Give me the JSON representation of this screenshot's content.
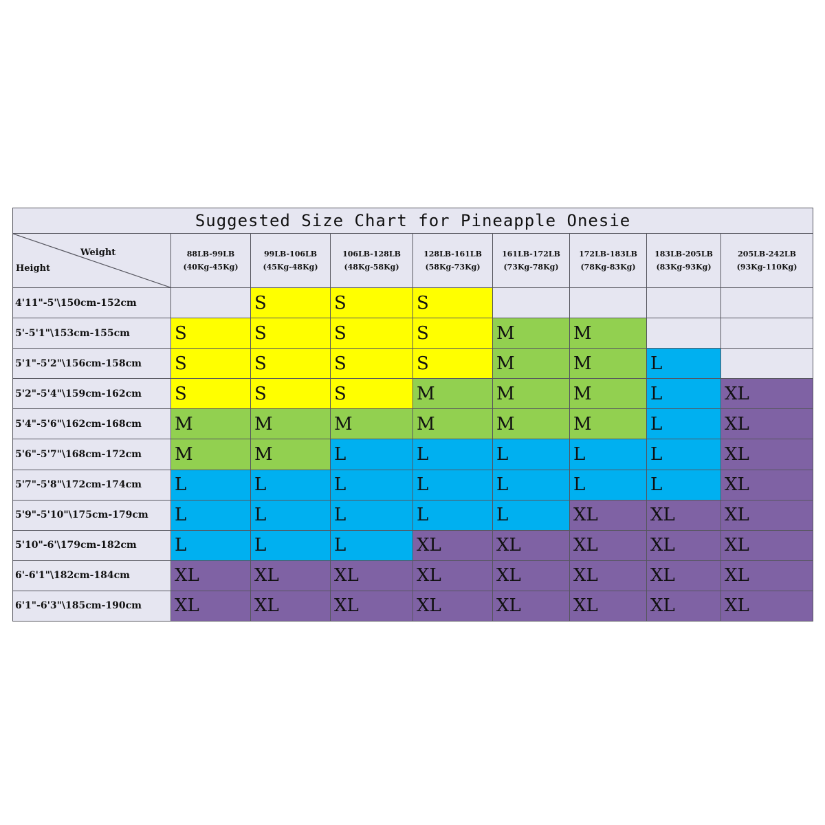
{
  "title": "Suggested Size Chart for Pineapple Onesie",
  "corner": {
    "weight_label": "Weight",
    "height_label": "Height"
  },
  "weight_columns": [
    {
      "lb": "88LB-99LB",
      "kg": "(40Kg-45Kg)"
    },
    {
      "lb": "99LB-106LB",
      "kg": "(45Kg-48Kg)"
    },
    {
      "lb": "106LB-128LB",
      "kg": "(48Kg-58Kg)"
    },
    {
      "lb": "128LB-161LB",
      "kg": "(58Kg-73Kg)"
    },
    {
      "lb": "161LB-172LB",
      "kg": "(73Kg-78Kg)"
    },
    {
      "lb": "172LB-183LB",
      "kg": "(78Kg-83Kg)"
    },
    {
      "lb": "183LB-205LB",
      "kg": "(83Kg-93Kg)"
    },
    {
      "lb": "205LB-242LB",
      "kg": "(93Kg-110Kg)"
    }
  ],
  "rows": [
    {
      "height": "4'11\"-5'\\150cm-152cm",
      "sizes": [
        "",
        "S",
        "S",
        "S",
        "",
        "",
        "",
        ""
      ]
    },
    {
      "height": "5'-5'1\"\\153cm-155cm",
      "sizes": [
        "S",
        "S",
        "S",
        "S",
        "M",
        "M",
        "",
        ""
      ]
    },
    {
      "height": "5'1\"-5'2\"\\156cm-158cm",
      "sizes": [
        "S",
        "S",
        "S",
        "S",
        "M",
        "M",
        "L",
        ""
      ]
    },
    {
      "height": "5'2\"-5'4\"\\159cm-162cm",
      "sizes": [
        "S",
        "S",
        "S",
        "M",
        "M",
        "M",
        "L",
        "XL"
      ]
    },
    {
      "height": "5'4\"-5'6\"\\162cm-168cm",
      "sizes": [
        "M",
        "M",
        "M",
        "M",
        "M",
        "M",
        "L",
        "XL"
      ]
    },
    {
      "height": "5'6\"-5'7\"\\168cm-172cm",
      "sizes": [
        "M",
        "M",
        "L",
        "L",
        "L",
        "L",
        "L",
        "XL"
      ]
    },
    {
      "height": "5'7\"-5'8\"\\172cm-174cm",
      "sizes": [
        "L",
        "L",
        "L",
        "L",
        "L",
        "L",
        "L",
        "XL"
      ]
    },
    {
      "height": "5'9\"-5'10\"\\175cm-179cm",
      "sizes": [
        "L",
        "L",
        "L",
        "L",
        "L",
        "XL",
        "XL",
        "XL"
      ]
    },
    {
      "height": "5'10\"-6'\\179cm-182cm",
      "sizes": [
        "L",
        "L",
        "L",
        "XL",
        "XL",
        "XL",
        "XL",
        "XL"
      ]
    },
    {
      "height": "6'-6'1\"\\182cm-184cm",
      "sizes": [
        "XL",
        "XL",
        "XL",
        "XL",
        "XL",
        "XL",
        "XL",
        "XL"
      ]
    },
    {
      "height": "6'1\"-6'3\"\\185cm-190cm",
      "sizes": [
        "XL",
        "XL",
        "XL",
        "XL",
        "XL",
        "XL",
        "XL",
        "XL"
      ]
    }
  ],
  "size_colors": {
    "S": "#ffff00",
    "M": "#92d050",
    "L": "#00b0f0",
    "XL": "#7f62a4",
    "empty": "#e6e6f1"
  }
}
